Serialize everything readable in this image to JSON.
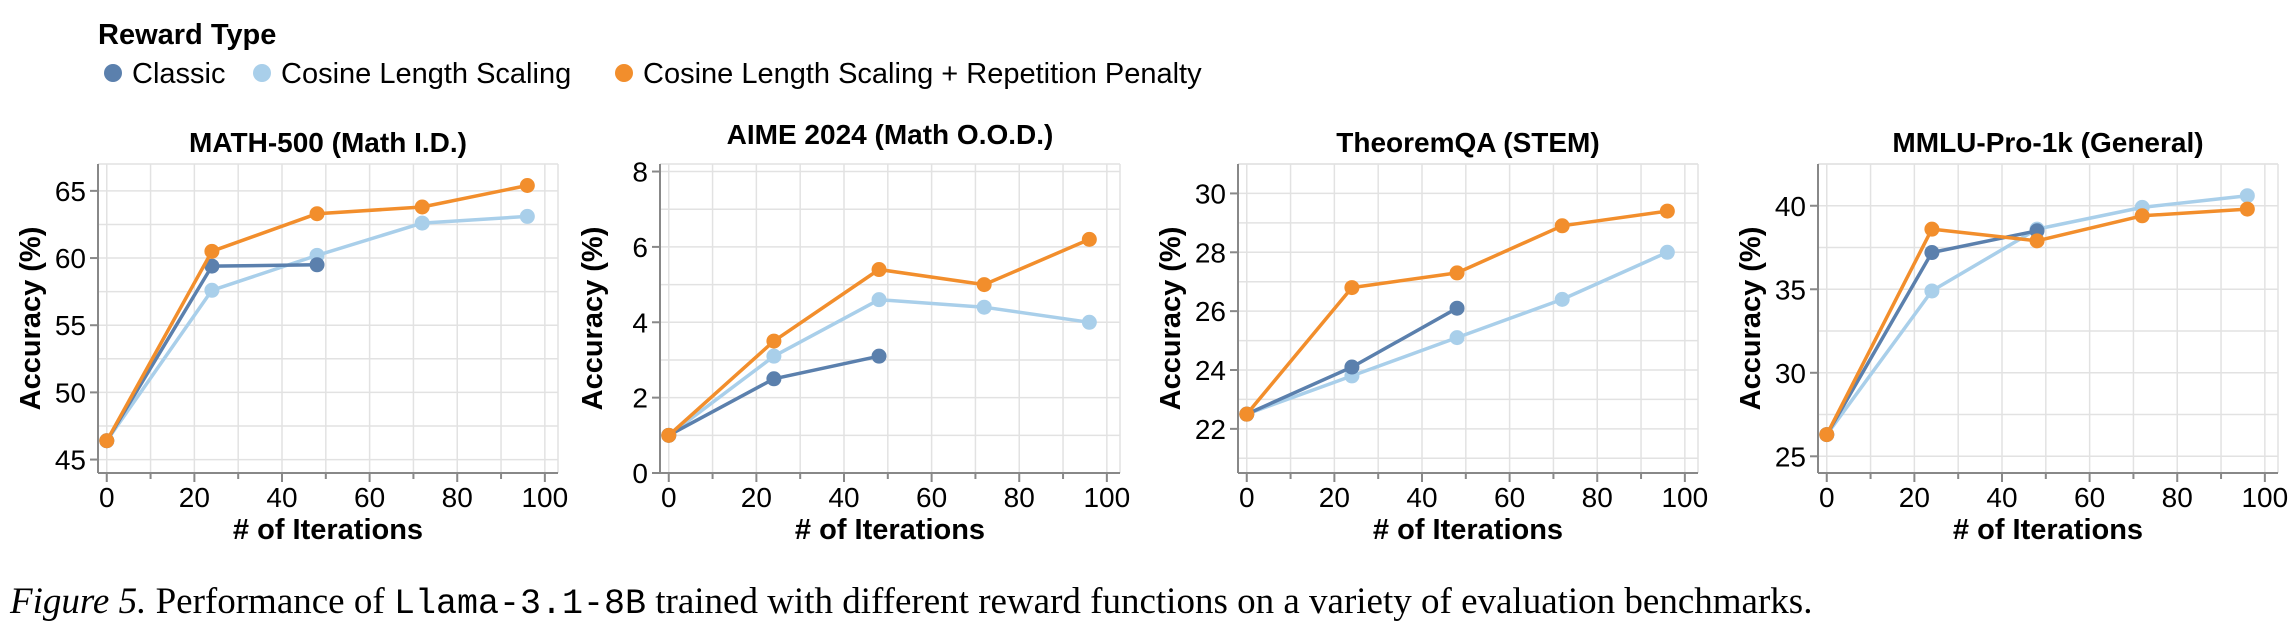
{
  "legend": {
    "title": "Reward Type",
    "items": [
      {
        "label": "Classic",
        "color": "#5b80ad"
      },
      {
        "label": "Cosine Length Scaling",
        "color": "#a9cfea"
      },
      {
        "label": "Cosine Length Scaling + Repetition Penalty",
        "color": "#f28e2c"
      }
    ]
  },
  "caption": {
    "label": "Figure 5.",
    "text_before": " Performance of ",
    "model": "Llama-3.1-8B",
    "text_after": " trained with different reward functions on a variety of evaluation benchmarks."
  },
  "chart_data": [
    {
      "type": "line",
      "title": "MATH-500 (Math I.D.)",
      "xlabel": "# of Iterations",
      "ylabel": "Accuracy (%)",
      "xlim": [
        -2,
        103
      ],
      "ylim": [
        44,
        67
      ],
      "xticks": [
        0,
        20,
        40,
        60,
        80,
        100
      ],
      "yticks": [
        45,
        50,
        55,
        60,
        65
      ],
      "series": [
        {
          "name": "Classic",
          "color": "#5b80ad",
          "x": [
            0,
            24,
            48
          ],
          "y": [
            46.4,
            59.4,
            59.5
          ]
        },
        {
          "name": "Cosine Length Scaling",
          "color": "#a9cfea",
          "x": [
            0,
            24,
            48,
            72,
            96
          ],
          "y": [
            46.4,
            57.6,
            60.2,
            62.6,
            63.1
          ]
        },
        {
          "name": "Cosine Length Scaling + Repetition Penalty",
          "color": "#f28e2c",
          "x": [
            0,
            24,
            48,
            72,
            96
          ],
          "y": [
            46.4,
            60.5,
            63.3,
            63.8,
            65.4
          ]
        }
      ]
    },
    {
      "type": "line",
      "title": "AIME 2024 (Math O.O.D.)",
      "xlabel": "# of Iterations",
      "ylabel": "Accuracy (%)",
      "xlim": [
        -2,
        103
      ],
      "ylim": [
        0,
        8.2
      ],
      "xticks": [
        0,
        20,
        40,
        60,
        80,
        100
      ],
      "yticks": [
        0,
        2,
        4,
        6,
        8
      ],
      "series": [
        {
          "name": "Classic",
          "color": "#5b80ad",
          "x": [
            0,
            24,
            48
          ],
          "y": [
            1.0,
            2.5,
            3.1
          ]
        },
        {
          "name": "Cosine Length Scaling",
          "color": "#a9cfea",
          "x": [
            0,
            24,
            48,
            72,
            96
          ],
          "y": [
            1.0,
            3.1,
            4.6,
            4.4,
            4.0
          ]
        },
        {
          "name": "Cosine Length Scaling + Repetition Penalty",
          "color": "#f28e2c",
          "x": [
            0,
            24,
            48,
            72,
            96
          ],
          "y": [
            1.0,
            3.5,
            5.4,
            5.0,
            6.2
          ]
        }
      ]
    },
    {
      "type": "line",
      "title": "TheoremQA (STEM)",
      "xlabel": "# of Iterations",
      "ylabel": "Accuracy (%)",
      "xlim": [
        -2,
        103
      ],
      "ylim": [
        20.5,
        31
      ],
      "xticks": [
        0,
        20,
        40,
        60,
        80,
        100
      ],
      "yticks": [
        22,
        24,
        26,
        28,
        30
      ],
      "series": [
        {
          "name": "Classic",
          "color": "#5b80ad",
          "x": [
            0,
            24,
            48
          ],
          "y": [
            22.5,
            24.1,
            26.1
          ]
        },
        {
          "name": "Cosine Length Scaling",
          "color": "#a9cfea",
          "x": [
            0,
            24,
            48,
            72,
            96
          ],
          "y": [
            22.5,
            23.8,
            25.1,
            26.4,
            28.0
          ]
        },
        {
          "name": "Cosine Length Scaling + Repetition Penalty",
          "color": "#f28e2c",
          "x": [
            0,
            24,
            48,
            72,
            96
          ],
          "y": [
            22.5,
            26.8,
            27.3,
            28.9,
            29.4
          ]
        }
      ]
    },
    {
      "type": "line",
      "title": "MMLU-Pro-1k (General)",
      "xlabel": "# of Iterations",
      "ylabel": "Accuracy (%)",
      "xlim": [
        -2,
        103
      ],
      "ylim": [
        24,
        42.5
      ],
      "xticks": [
        0,
        20,
        40,
        60,
        80,
        100
      ],
      "yticks": [
        25,
        30,
        35,
        40
      ],
      "series": [
        {
          "name": "Classic",
          "color": "#5b80ad",
          "x": [
            0,
            24,
            48
          ],
          "y": [
            26.3,
            37.2,
            38.5
          ]
        },
        {
          "name": "Cosine Length Scaling",
          "color": "#a9cfea",
          "x": [
            0,
            24,
            48,
            72,
            96
          ],
          "y": [
            26.3,
            34.9,
            38.6,
            39.9,
            40.6
          ]
        },
        {
          "name": "Cosine Length Scaling + Repetition Penalty",
          "color": "#f28e2c",
          "x": [
            0,
            24,
            48,
            72,
            96
          ],
          "y": [
            26.3,
            38.6,
            37.9,
            39.4,
            39.8
          ]
        }
      ]
    }
  ]
}
